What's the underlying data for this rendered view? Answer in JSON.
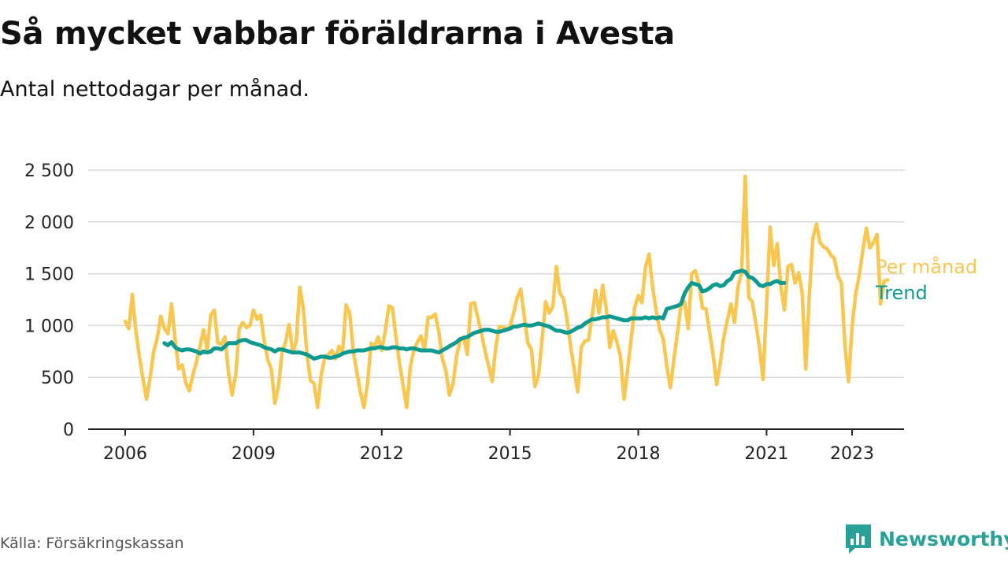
{
  "header": {
    "title": "Så mycket vabbar föräldrarna i Avesta",
    "subtitle": "Antal nettodagar per månad."
  },
  "footer": {
    "source": "Källa: Försäkringskassan",
    "brand": "Newsworthy",
    "brand_icon": "bar-chart-speech-bubble-icon"
  },
  "colors": {
    "monthly": "#f9c74f",
    "trend": "#0e9a8e",
    "grid": "#d9d9d9",
    "axis": "#222222",
    "tick_text": "#222222"
  },
  "chart_data": {
    "type": "line",
    "x_type": "date (YYYY-MM)",
    "ylim": [
      0,
      2500
    ],
    "yticks": [
      0,
      500,
      1000,
      1500,
      2000,
      2500
    ],
    "ytick_labels": [
      "0",
      "500",
      "1 000",
      "1 500",
      "2 000",
      "2 500"
    ],
    "xlim": [
      "2005-10",
      "2023-12"
    ],
    "xticks": [
      "2006-01",
      "2009-01",
      "2012-01",
      "2015-01",
      "2018-01",
      "2021-01",
      "2023-01"
    ],
    "xtick_labels": [
      "2006",
      "2009",
      "2012",
      "2015",
      "2018",
      "2021",
      "2023"
    ],
    "grid": "horizontal",
    "legend": "direct labels at line ends (right)",
    "series": [
      {
        "name": "Per månad",
        "start": "2006-01",
        "values": [
          1040,
          970,
          1300,
          940,
          700,
          480,
          290,
          500,
          750,
          880,
          1090,
          970,
          920,
          1210,
          870,
          580,
          620,
          450,
          370,
          530,
          650,
          800,
          960,
          760,
          1100,
          1150,
          830,
          820,
          890,
          540,
          330,
          520,
          970,
          1030,
          980,
          1000,
          1150,
          1060,
          1100,
          850,
          670,
          580,
          250,
          410,
          740,
          840,
          1010,
          740,
          850,
          1370,
          1160,
          720,
          470,
          440,
          210,
          520,
          690,
          720,
          760,
          680,
          800,
          750,
          1200,
          1120,
          750,
          550,
          360,
          210,
          440,
          830,
          800,
          890,
          760,
          950,
          1190,
          1170,
          880,
          630,
          420,
          210,
          600,
          760,
          840,
          900,
          770,
          1080,
          1080,
          1110,
          940,
          680,
          560,
          330,
          440,
          710,
          850,
          890,
          720,
          1210,
          1220,
          1070,
          920,
          750,
          610,
          460,
          790,
          990,
          990,
          960,
          990,
          1120,
          1270,
          1350,
          1090,
          830,
          770,
          410,
          520,
          870,
          1230,
          1120,
          1180,
          1570,
          1310,
          1260,
          1060,
          800,
          580,
          360,
          790,
          850,
          860,
          1080,
          1340,
          1120,
          1390,
          1170,
          790,
          950,
          840,
          700,
          290,
          580,
          870,
          1180,
          1290,
          1220,
          1560,
          1690,
          1380,
          1140,
          960,
          870,
          610,
          400,
          680,
          930,
          1200,
          1230,
          970,
          1500,
          1530,
          1410,
          1170,
          1160,
          940,
          720,
          430,
          640,
          890,
          1050,
          1210,
          1030,
          1380,
          1510,
          2440,
          1270,
          1230,
          1020,
          790,
          480,
          1190,
          1950,
          1580,
          1790,
          1380,
          1150,
          1570,
          1590,
          1410,
          1510,
          1310,
          580,
          1290,
          1840,
          1980,
          1800,
          1760,
          1740,
          1680,
          1650,
          1480,
          1410,
          800,
          460,
          990,
          1300,
          1480,
          1720,
          1940,
          1750,
          1800,
          1880,
          1210,
          1430,
          1440
        ]
      },
      {
        "name": "Trend",
        "start": "2006-12",
        "values": [
          830,
          810,
          840,
          790,
          770,
          760,
          770,
          770,
          760,
          750,
          730,
          750,
          740,
          750,
          780,
          780,
          770,
          800,
          830,
          830,
          830,
          850,
          860,
          860,
          840,
          830,
          820,
          810,
          790,
          780,
          770,
          750,
          770,
          770,
          760,
          750,
          740,
          740,
          740,
          730,
          720,
          700,
          680,
          690,
          700,
          700,
          690,
          690,
          700,
          710,
          730,
          740,
          750,
          750,
          760,
          760,
          760,
          770,
          780,
          780,
          790,
          790,
          780,
          780,
          790,
          790,
          780,
          780,
          770,
          780,
          780,
          770,
          760,
          760,
          760,
          760,
          750,
          740,
          760,
          780,
          800,
          820,
          840,
          870,
          880,
          890,
          910,
          930,
          940,
          950,
          960,
          960,
          950,
          940,
          940,
          950,
          960,
          970,
          990,
          990,
          1000,
          1010,
          1000,
          1000,
          1010,
          1020,
          1010,
          1000,
          990,
          970,
          950,
          950,
          940,
          930,
          940,
          960,
          980,
          990,
          1020,
          1040,
          1060,
          1060,
          1070,
          1080,
          1080,
          1090,
          1080,
          1070,
          1060,
          1050,
          1050,
          1070,
          1070,
          1070,
          1070,
          1080,
          1070,
          1080,
          1070,
          1080,
          1070,
          1160,
          1170,
          1180,
          1190,
          1210,
          1310,
          1370,
          1410,
          1400,
          1390,
          1330,
          1340,
          1360,
          1390,
          1400,
          1380,
          1390,
          1430,
          1450,
          1510,
          1520,
          1530,
          1520,
          1470,
          1460,
          1430,
          1390,
          1380,
          1400,
          1400,
          1420,
          1430,
          1410,
          1410
        ]
      }
    ]
  }
}
